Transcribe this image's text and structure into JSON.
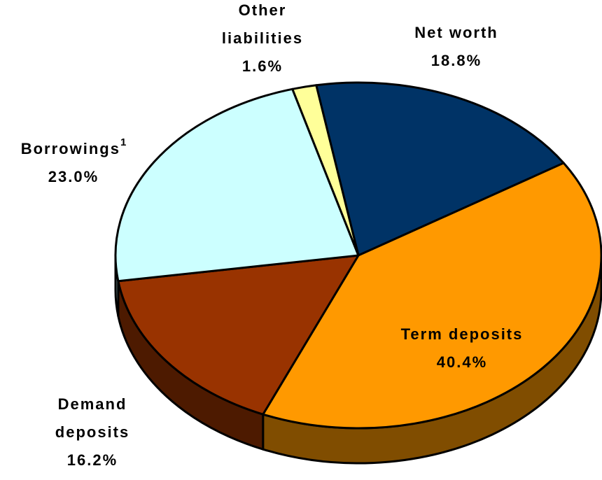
{
  "chart_data": {
    "type": "pie3d",
    "categories": [
      "Net worth",
      "Term deposits",
      "Demand deposits",
      "Borrowings",
      "Other liabilities"
    ],
    "values": [
      18.8,
      40.4,
      16.2,
      23.0,
      1.6
    ],
    "value_labels": [
      "18.8%",
      "40.4%",
      "16.2%",
      "23.0%",
      "1.6%"
    ],
    "colors": [
      "#003366",
      "#ff9900",
      "#993300",
      "#ccffff",
      "#ffff99"
    ],
    "borrowings_note": "1"
  }
}
